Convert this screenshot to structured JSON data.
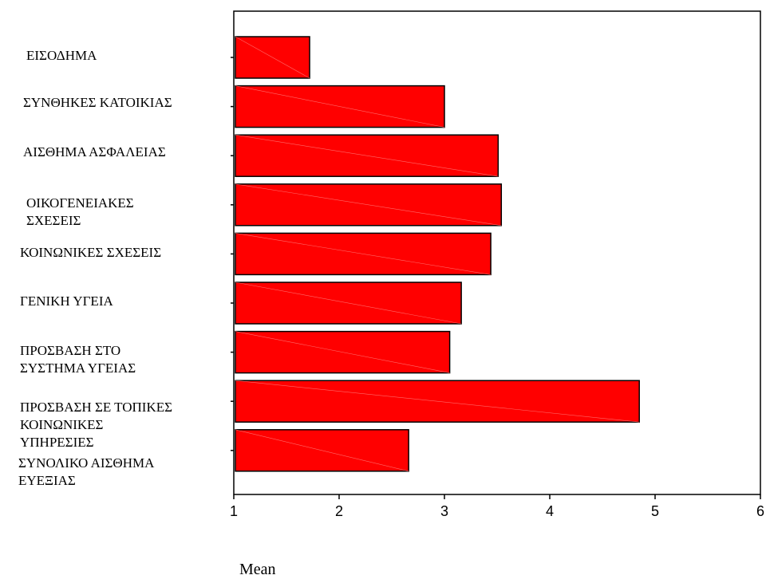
{
  "chart_data": {
    "type": "bar",
    "orientation": "horizontal",
    "xlabel": "Mean",
    "ylabel": "",
    "xlim": [
      1,
      6
    ],
    "xticks": [
      "1",
      "2",
      "3",
      "4",
      "5",
      "6"
    ],
    "categories": [
      "ΕΙΣΟΔΗΜΑ",
      "ΣΥΝΘΗΚΕΣ ΚΑΤΟΙΚΙΑΣ",
      "ΑΙΣΘΗΜΑ ΑΣΦΑΛΕΙΑΣ",
      "ΟΙΚΟΓΕΝΕΙΑΚΕΣ\nΣΧΕΣΕΙΣ",
      "ΚΟΙΝΩΝΙΚΕΣ ΣΧΕΣΕΙΣ",
      "ΓΕΝΙΚΗ ΥΓΕΙΑ",
      "ΠΡΟΣΒΑΣΗ ΣΤΟ\nΣΥΣΤΗΜΑ ΥΓΕΙΑΣ",
      "ΠΡΟΣΒΑΣΗ ΣΕ ΤΟΠΙΚΕΣ\nΚΟΙΝΩΝΙΚΕΣ\nΥΠΗΡΕΣΙΕΣ",
      "ΣΥΝΟΛΙΚΟ ΑΙΣΘΗΜΑ\nΕΥΕΞΙΑΣ"
    ],
    "values": [
      1.72,
      3.0,
      3.51,
      3.54,
      3.44,
      3.16,
      3.05,
      4.85,
      2.66
    ],
    "grid": false,
    "legend": "none",
    "bar_color": "#ff0000",
    "bar_edge_color": "#000000"
  }
}
